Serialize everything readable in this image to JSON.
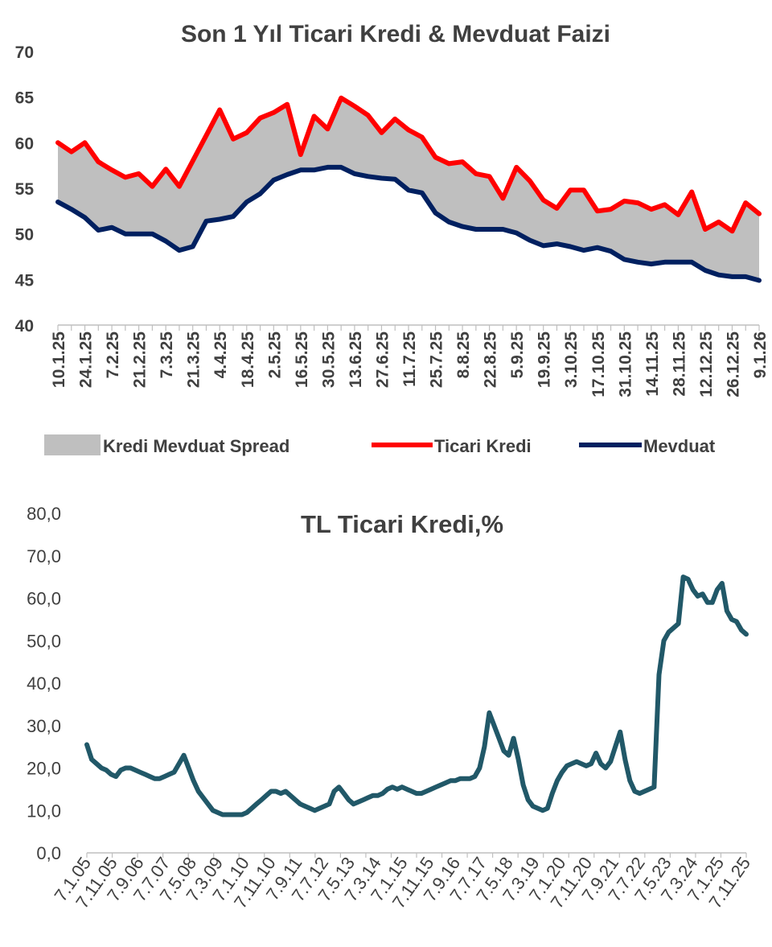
{
  "chart_data": [
    {
      "type": "area",
      "title": "Son 1 Yıl Ticari Kredi & Mevduat Faizi",
      "ylim": [
        40,
        70
      ],
      "y_ticks": [
        "40",
        "45",
        "50",
        "55",
        "60",
        "65",
        "70"
      ],
      "x_tick_labels": [
        "10.1.25",
        "24.1.25",
        "7.2.25",
        "21.2.25",
        "7.3.25",
        "21.3.25",
        "4.4.25",
        "18.4.25",
        "2.5.25",
        "16.5.25",
        "30.5.25",
        "13.6.25",
        "27.6.25",
        "11.7.25",
        "25.7.25",
        "8.8.25",
        "22.8.25",
        "5.9.25",
        "19.9.25",
        "3.10.25",
        "17.10.25",
        "31.10.25",
        "14.11.25",
        "28.11.25",
        "12.12.25",
        "26.12.25",
        "9.1.26"
      ],
      "legend": [
        "Kredi Mevduat Spread",
        "Ticari Kredi",
        "Mevduat"
      ],
      "colors": {
        "spread": "#bfbfbf",
        "ticari_kredi": "#ff0000",
        "mevduat": "#002060"
      },
      "series": [
        {
          "name": "Ticari Kredi",
          "values": [
            60.0,
            59.0,
            60.0,
            57.9,
            57.0,
            56.2,
            56.6,
            55.2,
            57.1,
            55.2,
            58.0,
            60.8,
            63.6,
            60.4,
            61.1,
            62.7,
            63.3,
            64.2,
            58.7,
            62.9,
            61.5,
            64.9,
            64.0,
            63.0,
            61.1,
            62.6,
            61.4,
            60.6,
            58.4,
            57.7,
            57.9,
            56.6,
            56.3,
            53.9,
            57.3,
            55.8,
            53.7,
            52.8,
            54.8,
            54.8,
            52.5,
            52.7,
            53.6,
            53.4,
            52.7,
            53.2,
            52.1,
            54.6,
            50.5,
            51.3,
            50.3,
            53.4,
            52.2
          ]
        },
        {
          "name": "Mevduat",
          "values": [
            53.5,
            52.7,
            51.8,
            50.4,
            50.7,
            50.0,
            50.0,
            50.0,
            49.2,
            48.2,
            48.6,
            51.4,
            51.6,
            51.9,
            53.5,
            54.4,
            55.9,
            56.5,
            57.0,
            57.0,
            57.3,
            57.3,
            56.6,
            56.3,
            56.1,
            56.0,
            54.8,
            54.5,
            52.3,
            51.3,
            50.8,
            50.5,
            50.5,
            50.5,
            50.1,
            49.3,
            48.7,
            48.9,
            48.6,
            48.2,
            48.5,
            48.1,
            47.2,
            46.9,
            46.7,
            46.9,
            46.9,
            46.9,
            46.0,
            45.5,
            45.3,
            45.3,
            44.9
          ]
        }
      ]
    },
    {
      "type": "line",
      "title": "TL Ticari Kredi,%",
      "ylim": [
        0,
        80
      ],
      "y_ticks": [
        "0,0",
        "10,0",
        "20,0",
        "30,0",
        "40,0",
        "50,0",
        "60,0",
        "70,0",
        "80,0"
      ],
      "x_tick_labels": [
        "7.1.05",
        "7.11.05",
        "7.9.06",
        "7.7.07",
        "7.5.08",
        "7.3.09",
        "7.1.10",
        "7.11.10",
        "7.9.11",
        "7.7.12",
        "7.5.13",
        "7.3.14",
        "7.1.15",
        "7.11.15",
        "7.9.16",
        "7.7.17",
        "7.5.18",
        "7.3.19",
        "7.1.20",
        "7.11.20",
        "7.9.21",
        "7.7.22",
        "7.5.23",
        "7.3.24",
        "7.1.25",
        "7.11.25"
      ],
      "color": "#215868",
      "series": [
        {
          "name": "TL Ticari Kredi",
          "values": [
            25.5,
            22.0,
            21.0,
            20.0,
            19.5,
            18.5,
            18.0,
            19.5,
            20.0,
            20.0,
            19.5,
            19.0,
            18.5,
            18.0,
            17.5,
            17.5,
            18.0,
            18.5,
            19.0,
            21.0,
            23.0,
            20.0,
            17.0,
            14.5,
            13.0,
            11.5,
            10.0,
            9.5,
            9.0,
            9.0,
            9.0,
            9.0,
            9.0,
            9.5,
            10.5,
            11.5,
            12.5,
            13.5,
            14.5,
            14.5,
            14.0,
            14.5,
            13.5,
            12.5,
            11.5,
            11.0,
            10.5,
            10.0,
            10.5,
            11.0,
            11.5,
            14.5,
            15.5,
            14.0,
            12.5,
            11.5,
            12.0,
            12.5,
            13.0,
            13.5,
            13.5,
            14.0,
            15.0,
            15.5,
            15.0,
            15.5,
            15.0,
            14.5,
            14.0,
            14.0,
            14.5,
            15.0,
            15.5,
            16.0,
            16.5,
            17.0,
            17.0,
            17.5,
            17.5,
            17.5,
            18.0,
            20.0,
            25.0,
            33.0,
            30.0,
            27.0,
            24.0,
            23.0,
            27.0,
            22.0,
            16.0,
            12.5,
            11.0,
            10.5,
            10.0,
            10.5,
            14.0,
            17.0,
            19.0,
            20.5,
            21.0,
            21.5,
            21.0,
            20.5,
            21.0,
            23.5,
            21.0,
            20.0,
            21.5,
            25.0,
            28.5,
            22.0,
            17.0,
            14.5,
            14.0,
            14.5,
            15.0,
            15.5,
            42.0,
            50.0,
            52.0,
            53.0,
            54.0,
            65.0,
            64.5,
            62.0,
            60.5,
            61.0,
            59.0,
            59.0,
            62.0,
            63.5,
            57.0,
            55.0,
            54.5,
            52.5,
            51.5
          ]
        }
      ]
    }
  ]
}
